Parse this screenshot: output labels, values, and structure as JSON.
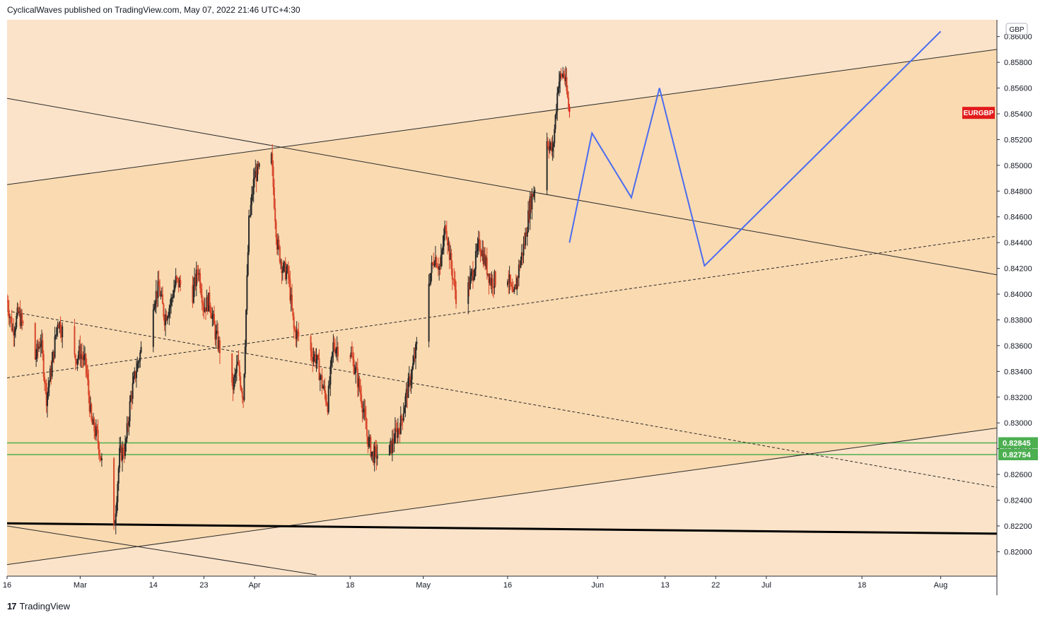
{
  "header": {
    "publisher_line": "CyclicalWaves published on TradingView.com, May 07, 2022 21:46 UTC+4:30"
  },
  "footer": {
    "brand": "TradingView",
    "logo_glyph": "17"
  },
  "chart_data": {
    "type": "candlestick",
    "symbol_label": "EURGBP",
    "currency_label": "GBP",
    "price_axis": {
      "range": [
        0.8181,
        0.8613
      ],
      "ticks": [
        "0.86000",
        "0.85800",
        "0.85600",
        "0.85400",
        "0.85200",
        "0.85000",
        "0.84800",
        "0.84600",
        "0.84400",
        "0.84200",
        "0.84000",
        "0.83800",
        "0.83600",
        "0.83400",
        "0.83200",
        "0.83000",
        "0.82800",
        "0.82600",
        "0.82400",
        "0.82200",
        "0.82000"
      ]
    },
    "time_axis": {
      "range": [
        "2022-02-16",
        "2022-08-11"
      ],
      "ticks": [
        {
          "label": "16",
          "date": "2022-02-16"
        },
        {
          "label": "Mar",
          "date": "2022-03-01"
        },
        {
          "label": "14",
          "date": "2022-03-14"
        },
        {
          "label": "23",
          "date": "2022-03-23"
        },
        {
          "label": "Apr",
          "date": "2022-04-01"
        },
        {
          "label": "18",
          "date": "2022-04-18"
        },
        {
          "label": "May",
          "date": "2022-05-01"
        },
        {
          "label": "16",
          "date": "2022-05-16"
        },
        {
          "label": "Jun",
          "date": "2022-06-01"
        },
        {
          "label": "13",
          "date": "2022-06-13"
        },
        {
          "label": "22",
          "date": "2022-06-22"
        },
        {
          "label": "Jul",
          "date": "2022-07-01"
        },
        {
          "label": "18",
          "date": "2022-07-18"
        },
        {
          "label": "Aug",
          "date": "2022-08-01"
        }
      ]
    },
    "last_price_color": "#e21b1b",
    "up_color": "#2a2a2a",
    "down_color": "#d8472b",
    "horizontal_levels": [
      {
        "value": "0.82845",
        "price": 0.82845,
        "color": "#4caf50"
      },
      {
        "value": "0.82754",
        "price": 0.82754,
        "color": "#4caf50"
      }
    ],
    "price_path": [
      [
        "2022-02-16",
        0.8395
      ],
      [
        "2022-02-17",
        0.8372
      ],
      [
        "2022-02-18",
        0.8385
      ],
      [
        "2022-02-21",
        0.835
      ],
      [
        "2022-02-22",
        0.8365
      ],
      [
        "2022-02-23",
        0.832
      ],
      [
        "2022-02-24",
        0.8345
      ],
      [
        "2022-02-25",
        0.838
      ],
      [
        "2022-02-28",
        0.835
      ],
      [
        "2022-03-01",
        0.8355
      ],
      [
        "2022-03-02",
        0.8345
      ],
      [
        "2022-03-03",
        0.83
      ],
      [
        "2022-03-04",
        0.829
      ],
      [
        "2022-03-07",
        0.8215
      ],
      [
        "2022-03-08",
        0.8275
      ],
      [
        "2022-03-09",
        0.828
      ],
      [
        "2022-03-10",
        0.832
      ],
      [
        "2022-03-11",
        0.8342
      ],
      [
        "2022-03-14",
        0.8395
      ],
      [
        "2022-03-15",
        0.8405
      ],
      [
        "2022-03-16",
        0.8382
      ],
      [
        "2022-03-17",
        0.8392
      ],
      [
        "2022-03-18",
        0.841
      ],
      [
        "2022-03-21",
        0.84
      ],
      [
        "2022-03-22",
        0.842
      ],
      [
        "2022-03-23",
        0.839
      ],
      [
        "2022-03-24",
        0.8395
      ],
      [
        "2022-03-25",
        0.837
      ],
      [
        "2022-03-28",
        0.8325
      ],
      [
        "2022-03-29",
        0.8345
      ],
      [
        "2022-03-30",
        0.832
      ],
      [
        "2022-03-31",
        0.8455
      ],
      [
        "2022-04-01",
        0.8492
      ],
      [
        "2022-04-04",
        0.8505
      ],
      [
        "2022-04-05",
        0.844
      ],
      [
        "2022-04-06",
        0.842
      ],
      [
        "2022-04-07",
        0.8415
      ],
      [
        "2022-04-08",
        0.8372
      ],
      [
        "2022-04-11",
        0.8355
      ],
      [
        "2022-04-12",
        0.835
      ],
      [
        "2022-04-13",
        0.833
      ],
      [
        "2022-04-14",
        0.8315
      ],
      [
        "2022-04-15",
        0.836
      ],
      [
        "2022-04-18",
        0.8355
      ],
      [
        "2022-04-19",
        0.834
      ],
      [
        "2022-04-20",
        0.832
      ],
      [
        "2022-04-21",
        0.829
      ],
      [
        "2022-04-22",
        0.8275
      ],
      [
        "2022-04-25",
        0.8278
      ],
      [
        "2022-04-26",
        0.829
      ],
      [
        "2022-04-27",
        0.83
      ],
      [
        "2022-04-28",
        0.8322
      ],
      [
        "2022-04-29",
        0.834
      ],
      [
        "2022-05-02",
        0.841
      ],
      [
        "2022-05-03",
        0.843
      ],
      [
        "2022-05-04",
        0.842
      ],
      [
        "2022-05-05",
        0.8455
      ],
      [
        "2022-05-06",
        0.842
      ],
      [
        "2022-05-07",
        0.8395
      ],
      [
        "2022-05-08",
        0.838
      ],
      [
        "2022-05-09",
        0.8405
      ],
      [
        "2022-05-10",
        0.842
      ],
      [
        "2022-05-11",
        0.844
      ],
      [
        "2022-05-12",
        0.8425
      ],
      [
        "2022-05-13",
        0.841
      ],
      [
        "2022-05-16",
        0.8415
      ],
      [
        "2022-05-17",
        0.8395
      ],
      [
        "2022-05-18",
        0.842
      ],
      [
        "2022-05-19",
        0.844
      ],
      [
        "2022-05-20",
        0.847
      ],
      [
        "2022-05-23",
        0.852
      ],
      [
        "2022-05-24",
        0.851
      ],
      [
        "2022-05-25",
        0.8565
      ],
      [
        "2022-05-26",
        0.8572
      ],
      [
        "2022-05-27",
        0.8541
      ]
    ],
    "projection_path": [
      [
        "2022-05-27",
        0.844
      ],
      [
        "2022-05-31",
        0.8525
      ],
      [
        "2022-06-07",
        0.8475
      ],
      [
        "2022-06-12",
        0.856
      ],
      [
        "2022-06-20",
        0.8422
      ],
      [
        "2022-08-01",
        0.8604
      ]
    ],
    "trendlines": [
      {
        "style": "solid",
        "width": 1,
        "color": "#2b2b2b",
        "from": [
          "2022-02-16",
          0.8485
        ],
        "to": [
          "2022-08-11",
          0.859
        ]
      },
      {
        "style": "solid",
        "width": 1,
        "color": "#2b2b2b",
        "from": [
          "2022-02-16",
          0.8552
        ],
        "to": [
          "2022-08-11",
          0.8415
        ]
      },
      {
        "style": "solid",
        "width": 1,
        "color": "#2b2b2b",
        "from": [
          "2022-02-16",
          0.819
        ],
        "to": [
          "2022-08-11",
          0.8296
        ]
      },
      {
        "style": "solid",
        "width": 1,
        "color": "#2b2b2b",
        "from": [
          "2022-02-16",
          0.822
        ],
        "to": [
          "2022-04-12",
          0.8182
        ]
      },
      {
        "style": "solid",
        "width": 3,
        "color": "#000000",
        "from": [
          "2022-02-16",
          0.8222
        ],
        "to": [
          "2022-08-11",
          0.8214
        ]
      },
      {
        "style": "dashed",
        "width": 1,
        "color": "#2b2b2b",
        "from": [
          "2022-02-16",
          0.8335
        ],
        "to": [
          "2022-08-11",
          0.8445
        ]
      },
      {
        "style": "dashed",
        "width": 1,
        "color": "#2b2b2b",
        "from": [
          "2022-02-16",
          0.8387
        ],
        "to": [
          "2022-08-11",
          0.825
        ]
      }
    ]
  }
}
